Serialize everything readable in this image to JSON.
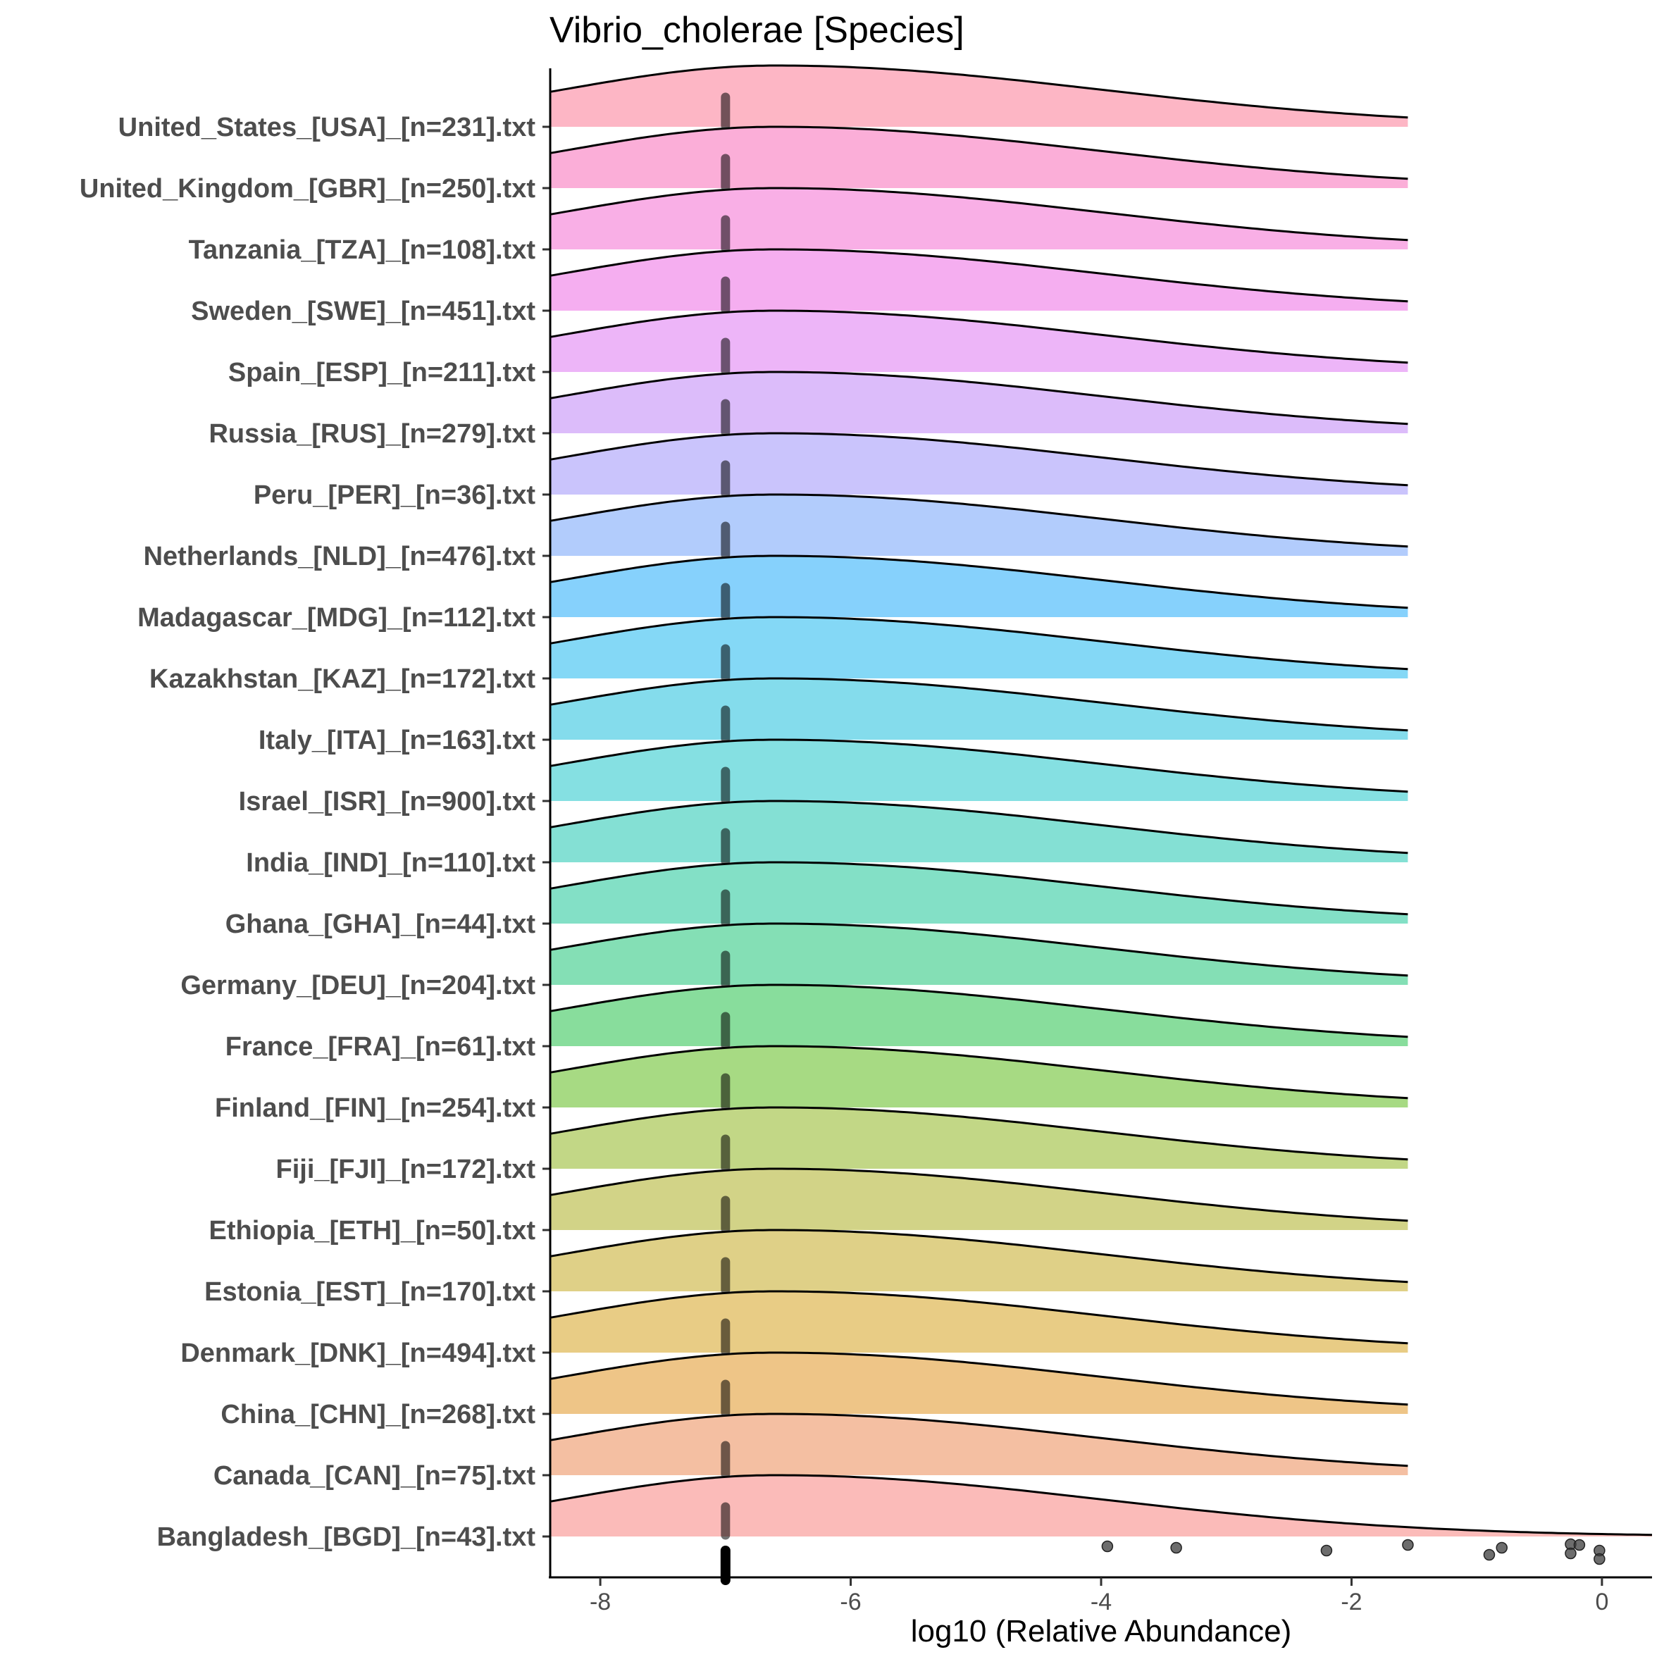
{
  "chart_data": {
    "type": "ridgeline",
    "title": "Vibrio_cholerae [Species]",
    "xlabel": "log10 (Relative Abundance)",
    "ylabel": "",
    "xlim": [
      -8.4,
      0.4
    ],
    "xticks": [
      -8,
      -6,
      -4,
      -2,
      0
    ],
    "xtick_labels": [
      "-8",
      "-6",
      "-4",
      "-2",
      "0"
    ],
    "grid": false,
    "legend": "none",
    "series": [
      {
        "label": "United_States_[USA]_[n=231].txt",
        "color": "#FDB6C5",
        "median": -7.0,
        "density_max": 0.6,
        "x_end": -1.55
      },
      {
        "label": "United_Kingdom_[GBR]_[n=250].txt",
        "color": "#FBAED8",
        "median": -7.0,
        "density_max": 0.6,
        "x_end": -1.55
      },
      {
        "label": "Tanzania_[TZA]_[n=108].txt",
        "color": "#F9AFE6",
        "median": -7.0,
        "density_max": 0.6,
        "x_end": -1.55
      },
      {
        "label": "Sweden_[SWE]_[n=451].txt",
        "color": "#F5AEF0",
        "median": -7.0,
        "density_max": 0.6,
        "x_end": -1.55
      },
      {
        "label": "Spain_[ESP]_[n=211].txt",
        "color": "#EDB5F8",
        "median": -7.0,
        "density_max": 0.6,
        "x_end": -1.55
      },
      {
        "label": "Russia_[RUS]_[n=279].txt",
        "color": "#DCBCFA",
        "median": -7.0,
        "density_max": 0.6,
        "x_end": -1.55
      },
      {
        "label": "Peru_[PER]_[n=36].txt",
        "color": "#CAC4FC",
        "median": -7.0,
        "density_max": 0.6,
        "x_end": -1.55
      },
      {
        "label": "Netherlands_[NLD]_[n=476].txt",
        "color": "#B2CCFC",
        "median": -7.0,
        "density_max": 0.6,
        "x_end": -1.55
      },
      {
        "label": "Madagascar_[MDG]_[n=112].txt",
        "color": "#86D1FC",
        "median": -7.0,
        "density_max": 0.6,
        "x_end": -1.55
      },
      {
        "label": "Kazakhstan_[KAZ]_[n=172].txt",
        "color": "#84D8F6",
        "median": -7.0,
        "density_max": 0.6,
        "x_end": -1.55
      },
      {
        "label": "Italy_[ITA]_[n=163].txt",
        "color": "#84DCEC",
        "median": -7.0,
        "density_max": 0.6,
        "x_end": -1.55
      },
      {
        "label": "Israel_[ISR]_[n=900].txt",
        "color": "#85E0E2",
        "median": -7.0,
        "density_max": 0.6,
        "x_end": -1.55
      },
      {
        "label": "India_[IND]_[n=110].txt",
        "color": "#84E0D4",
        "median": -7.0,
        "density_max": 0.6,
        "x_end": -1.55
      },
      {
        "label": "Ghana_[GHA]_[n=44].txt",
        "color": "#83E0C6",
        "median": -7.0,
        "density_max": 0.6,
        "x_end": -1.55
      },
      {
        "label": "Germany_[DEU]_[n=204].txt",
        "color": "#84DFB5",
        "median": -7.0,
        "density_max": 0.6,
        "x_end": -1.55
      },
      {
        "label": "France_[FRA]_[n=61].txt",
        "color": "#88DD9C",
        "median": -7.0,
        "density_max": 0.6,
        "x_end": -1.55
      },
      {
        "label": "Finland_[FIN]_[n=254].txt",
        "color": "#A7DA83",
        "median": -7.0,
        "density_max": 0.6,
        "x_end": -1.55
      },
      {
        "label": "Fiji_[FJI]_[n=172].txt",
        "color": "#C2D786",
        "median": -7.0,
        "density_max": 0.6,
        "x_end": -1.55
      },
      {
        "label": "Ethiopia_[ETH]_[n=50].txt",
        "color": "#D2D387",
        "median": -7.0,
        "density_max": 0.6,
        "x_end": -1.55
      },
      {
        "label": "Estonia_[EST]_[n=170].txt",
        "color": "#DFD087",
        "median": -7.0,
        "density_max": 0.6,
        "x_end": -1.55
      },
      {
        "label": "Denmark_[DNK]_[n=494].txt",
        "color": "#E8CC85",
        "median": -7.0,
        "density_max": 0.6,
        "x_end": -1.55
      },
      {
        "label": "China_[CHN]_[n=268].txt",
        "color": "#EEC587",
        "median": -7.0,
        "density_max": 0.6,
        "x_end": -1.55
      },
      {
        "label": "Canada_[CAN]_[n=75].txt",
        "color": "#F4BFA2",
        "median": -7.0,
        "density_max": 0.6,
        "x_end": -1.55
      },
      {
        "label": "Bangladesh_[BGD]_[n=43].txt",
        "color": "#FBBBB9",
        "median": -7.0,
        "density_max": 0.6,
        "x_end": 0.4,
        "points": [
          -3.95,
          -3.4,
          -2.2,
          -1.55,
          -0.9,
          -0.8,
          -0.25,
          -0.25,
          -0.18,
          -0.02,
          -0.02
        ]
      }
    ]
  }
}
